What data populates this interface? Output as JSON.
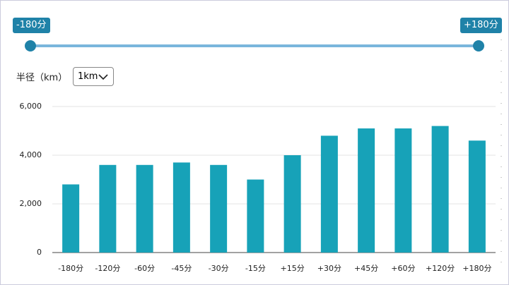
{
  "slider": {
    "min_label": "-180分",
    "max_label": "+180分"
  },
  "radius": {
    "label": "半径（km）",
    "selected": "1km"
  },
  "chart_data": {
    "type": "bar",
    "categories": [
      "-180分",
      "-120分",
      "-60分",
      "-45分",
      "-30分",
      "-15分",
      "+15分",
      "+30分",
      "+45分",
      "+60分",
      "+120分",
      "+180分"
    ],
    "values": [
      2800,
      3600,
      3600,
      3700,
      3600,
      3000,
      4000,
      4800,
      5100,
      5100,
      5200,
      4600
    ],
    "color": "#17a2b8",
    "ylim": [
      0,
      6000
    ],
    "yticks": [
      0,
      {
        "value": 2000,
        "label": "2,000"
      },
      {
        "value": 4000,
        "label": "4,000"
      },
      {
        "value": 6000,
        "label": "6,000"
      }
    ],
    "grid": true
  }
}
